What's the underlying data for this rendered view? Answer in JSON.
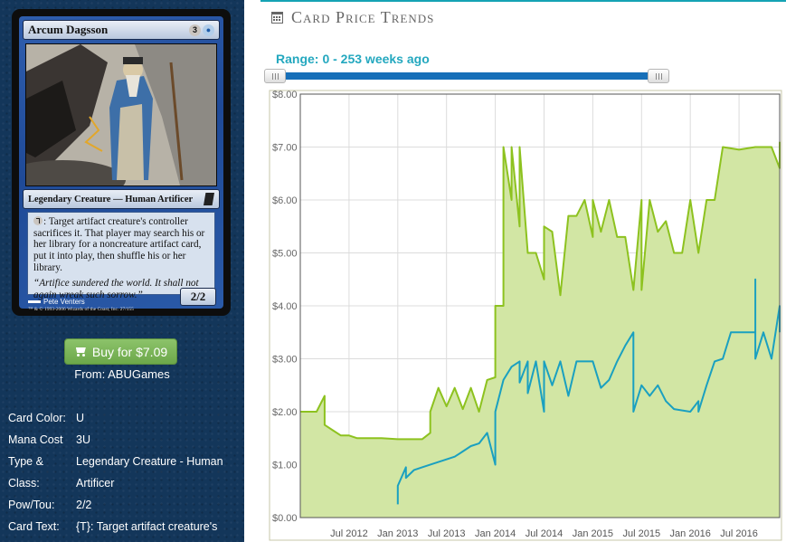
{
  "card": {
    "name": "Arcum Dagsson",
    "mana_generic": "3",
    "type_line": "Legendary Creature — Human Artificer",
    "rules_text": ": Target artifact creature's controller sacrifices it. That player may search his or her library for a noncreature artifact card, put it into play, then shuffle his or her library.",
    "flavor_text": "“Artifice sundered the world. It shall not again wreak such sorrow.”",
    "power_toughness": "2/2",
    "artist": "Pete Venters",
    "copyright": "™ & © 1993-2006 Wizards of the Coast, Inc. 27/155"
  },
  "buy": {
    "label": "Buy for $7.09",
    "from": "From: ABUGames"
  },
  "details": [
    {
      "label": "Card Color:",
      "value": "U"
    },
    {
      "label": "Mana Cost",
      "value": "3U"
    },
    {
      "label": "Type & Class:",
      "value": "Legendary Creature - Human Artificer"
    },
    {
      "label": "Pow/Tou:",
      "value": "2/2"
    },
    {
      "label": "Card Text:",
      "value": "{T}: Target artifact creature's controller sacrifices it. That"
    }
  ],
  "panel": {
    "title": "Card Price Trends",
    "range_prefix": "Range:",
    "range_value": "0 - 253 weeks ago"
  },
  "icons": {
    "buy": "shopping-cart-icon",
    "title": "calendar-icon"
  },
  "colors": {
    "sidebar": "#13365a",
    "accent": "#15a3b4",
    "buy_button": "#7bb65a",
    "series_high": "#8dc21f",
    "series_low": "#1aa0c0",
    "fill": "#d2e6a4"
  },
  "chart_data": {
    "type": "area",
    "x_start": "2012-01",
    "x_end": "2016-12",
    "ylim": [
      0,
      8
    ],
    "yticks": [
      "$0.00",
      "$1.00",
      "$2.00",
      "$3.00",
      "$4.00",
      "$5.00",
      "$6.00",
      "$7.00",
      "$8.00"
    ],
    "xticks": [
      {
        "date": "2012-07",
        "label": "Jul 2012"
      },
      {
        "date": "2013-01",
        "label": "Jan 2013"
      },
      {
        "date": "2013-07",
        "label": "Jul 2013"
      },
      {
        "date": "2014-01",
        "label": "Jan 2014"
      },
      {
        "date": "2014-07",
        "label": "Jul 2014"
      },
      {
        "date": "2015-01",
        "label": "Jan 2015"
      },
      {
        "date": "2015-07",
        "label": "Jul 2015"
      },
      {
        "date": "2016-01",
        "label": "Jan 2016"
      },
      {
        "date": "2016-07",
        "label": "Jul 2016"
      }
    ],
    "grid": true,
    "series": [
      {
        "color": "#8dc21f",
        "filled": true,
        "points": [
          [
            "2012-01",
            2.0
          ],
          [
            "2012-03",
            2.0
          ],
          [
            "2012-04",
            2.3
          ],
          [
            "2012-04",
            1.75
          ],
          [
            "2012-05",
            1.65
          ],
          [
            "2012-06",
            1.55
          ],
          [
            "2012-07",
            1.55
          ],
          [
            "2012-08",
            1.5
          ],
          [
            "2012-11",
            1.5
          ],
          [
            "2013-01",
            1.48
          ],
          [
            "2013-04",
            1.48
          ],
          [
            "2013-05",
            1.6
          ],
          [
            "2013-05",
            2.0
          ],
          [
            "2013-06",
            2.45
          ],
          [
            "2013-07",
            2.1
          ],
          [
            "2013-08",
            2.45
          ],
          [
            "2013-09",
            2.05
          ],
          [
            "2013-10",
            2.45
          ],
          [
            "2013-11",
            2.0
          ],
          [
            "2013-12",
            2.6
          ],
          [
            "2014-01",
            2.65
          ],
          [
            "2014-01",
            4.0
          ],
          [
            "2014-02",
            4.0
          ],
          [
            "2014-02",
            7.0
          ],
          [
            "2014-03",
            6.0
          ],
          [
            "2014-03",
            7.0
          ],
          [
            "2014-04",
            5.5
          ],
          [
            "2014-04",
            7.0
          ],
          [
            "2014-05",
            5.0
          ],
          [
            "2014-06",
            5.0
          ],
          [
            "2014-07",
            4.5
          ],
          [
            "2014-07",
            5.5
          ],
          [
            "2014-08",
            5.4
          ],
          [
            "2014-09",
            4.2
          ],
          [
            "2014-10",
            5.7
          ],
          [
            "2014-11",
            5.7
          ],
          [
            "2014-12",
            6.0
          ],
          [
            "2015-01",
            5.3
          ],
          [
            "2015-01",
            6.0
          ],
          [
            "2015-02",
            5.4
          ],
          [
            "2015-03",
            6.0
          ],
          [
            "2015-04",
            5.3
          ],
          [
            "2015-05",
            5.3
          ],
          [
            "2015-06",
            4.3
          ],
          [
            "2015-07",
            6.0
          ],
          [
            "2015-07",
            4.3
          ],
          [
            "2015-08",
            6.0
          ],
          [
            "2015-09",
            5.4
          ],
          [
            "2015-10",
            5.6
          ],
          [
            "2015-11",
            5.0
          ],
          [
            "2015-12",
            5.0
          ],
          [
            "2016-01",
            6.0
          ],
          [
            "2016-02",
            5.0
          ],
          [
            "2016-03",
            6.0
          ],
          [
            "2016-04",
            6.0
          ],
          [
            "2016-05",
            7.0
          ],
          [
            "2016-07",
            6.95
          ],
          [
            "2016-09",
            7.0
          ],
          [
            "2016-11",
            7.0
          ],
          [
            "2016-12",
            6.6
          ],
          [
            "2016-12",
            7.1
          ]
        ]
      },
      {
        "color": "#1aa0c0",
        "filled": false,
        "points": [
          [
            "2013-01",
            0.25
          ],
          [
            "2013-01",
            0.6
          ],
          [
            "2013-02",
            0.95
          ],
          [
            "2013-02",
            0.75
          ],
          [
            "2013-03",
            0.9
          ],
          [
            "2013-04",
            0.95
          ],
          [
            "2013-06",
            1.05
          ],
          [
            "2013-08",
            1.15
          ],
          [
            "2013-09",
            1.25
          ],
          [
            "2013-10",
            1.35
          ],
          [
            "2013-11",
            1.4
          ],
          [
            "2013-12",
            1.6
          ],
          [
            "2014-01",
            1.0
          ],
          [
            "2014-01",
            2.0
          ],
          [
            "2014-02",
            2.6
          ],
          [
            "2014-03",
            2.85
          ],
          [
            "2014-04",
            2.95
          ],
          [
            "2014-04",
            2.55
          ],
          [
            "2014-05",
            2.95
          ],
          [
            "2014-05",
            2.35
          ],
          [
            "2014-06",
            2.95
          ],
          [
            "2014-07",
            2.0
          ],
          [
            "2014-07",
            2.95
          ],
          [
            "2014-08",
            2.5
          ],
          [
            "2014-09",
            2.95
          ],
          [
            "2014-10",
            2.3
          ],
          [
            "2014-11",
            2.95
          ],
          [
            "2015-01",
            2.95
          ],
          [
            "2015-02",
            2.45
          ],
          [
            "2015-03",
            2.6
          ],
          [
            "2015-04",
            2.95
          ],
          [
            "2015-05",
            3.25
          ],
          [
            "2015-06",
            3.5
          ],
          [
            "2015-06",
            2.0
          ],
          [
            "2015-07",
            2.5
          ],
          [
            "2015-08",
            2.3
          ],
          [
            "2015-09",
            2.5
          ],
          [
            "2015-10",
            2.2
          ],
          [
            "2015-11",
            2.05
          ],
          [
            "2016-01",
            2.0
          ],
          [
            "2016-02",
            2.2
          ],
          [
            "2016-02",
            2.0
          ],
          [
            "2016-03",
            2.5
          ],
          [
            "2016-04",
            2.95
          ],
          [
            "2016-05",
            3.0
          ],
          [
            "2016-06",
            3.5
          ],
          [
            "2016-09",
            3.5
          ],
          [
            "2016-09",
            4.5
          ],
          [
            "2016-09",
            3.0
          ],
          [
            "2016-10",
            3.5
          ],
          [
            "2016-11",
            3.0
          ],
          [
            "2016-12",
            4.0
          ],
          [
            "2016-12",
            3.5
          ]
        ]
      }
    ]
  }
}
